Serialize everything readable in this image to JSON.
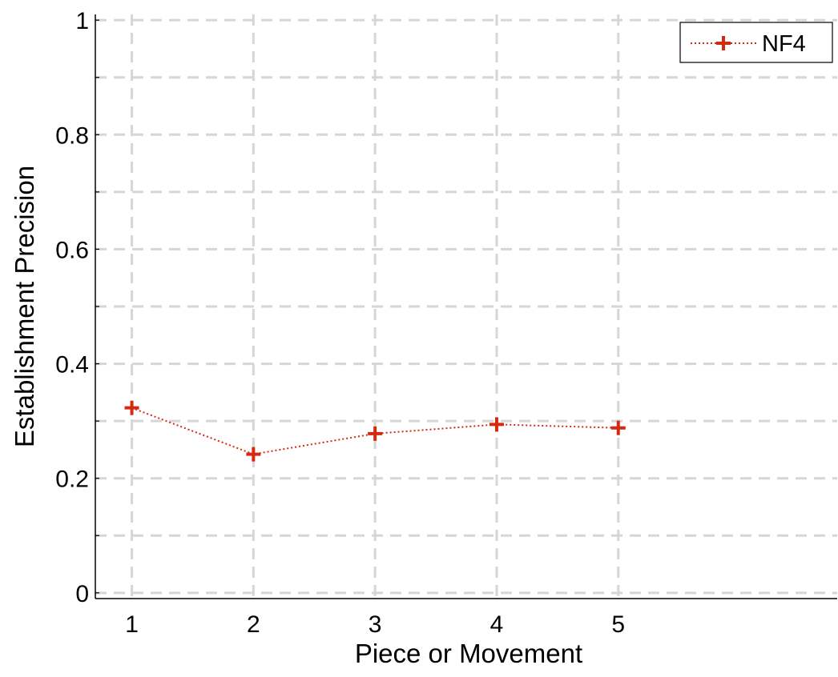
{
  "chart_data": {
    "type": "line",
    "title": "",
    "xlabel": "Piece or Movement",
    "ylabel": "Establishment Precision",
    "x": [
      1,
      2,
      3,
      4,
      5
    ],
    "series": [
      {
        "name": "NF4",
        "values": [
          0.323,
          0.242,
          0.278,
          0.294,
          0.288
        ],
        "color": "#d42a12",
        "line_style": "dotted",
        "marker": "plus"
      }
    ],
    "xlim": [
      0.7,
      6.8
    ],
    "ylim": [
      -0.01,
      1.01
    ],
    "xticks": [
      1,
      2,
      3,
      4,
      5
    ],
    "xtick_labels": [
      "1",
      "2",
      "3",
      "4",
      "5"
    ],
    "yticks": [
      0,
      0.2,
      0.4,
      0.6,
      0.8,
      1
    ],
    "ytick_labels": [
      "0",
      "0.2",
      "0.4",
      "0.6",
      "0.8",
      "1"
    ],
    "y_minor_gridlines": [
      0.1,
      0.3,
      0.5,
      0.7,
      0.9
    ],
    "grid": true,
    "grid_style": "dashed",
    "grid_color": "#d6d6d6",
    "legend_position": "top-right"
  }
}
